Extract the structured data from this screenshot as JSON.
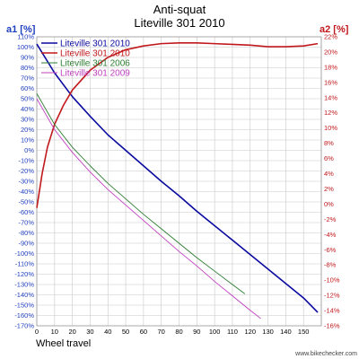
{
  "chart_data": {
    "type": "line",
    "title": "Anti-squat",
    "subtitle": "Liteville 301 2010",
    "y_left_label": "a1 [%]",
    "y_right_label": "a2 [%]",
    "xlabel": "Wheel travel",
    "credit": "www.bikechecker.com",
    "xlim": [
      0,
      160
    ],
    "ylim_left": [
      -170,
      110
    ],
    "ylim_right": [
      -16,
      22
    ],
    "x_ticks": [
      0,
      10,
      20,
      30,
      40,
      50,
      60,
      70,
      80,
      90,
      100,
      110,
      120,
      130,
      140,
      150
    ],
    "y_left_ticks": [
      "110%",
      "100%",
      "90%",
      "80%",
      "70%",
      "60%",
      "50%",
      "40%",
      "30%",
      "20%",
      "10%",
      "0%",
      "-10%",
      "-20%",
      "-30%",
      "-40%",
      "-50%",
      "-60%",
      "-70%",
      "-80%",
      "-90%",
      "-100%",
      "-110%",
      "-120%",
      "-130%",
      "-140%",
      "-150%",
      "-160%",
      "-170%"
    ],
    "y_right_ticks": [
      "22%",
      "20%",
      "18%",
      "16%",
      "14%",
      "12%",
      "10%",
      "8%",
      "6%",
      "4%",
      "2%",
      "0%",
      "-2%",
      "-4%",
      "-6%",
      "-8%",
      "-10%",
      "-12%",
      "-14%",
      "-16%"
    ],
    "grid": true,
    "legend_position": "top-left",
    "series": [
      {
        "name": "Liteville 301 2010",
        "axis": "left",
        "color": "#0a0aa0",
        "points": [
          [
            0,
            103
          ],
          [
            10,
            75
          ],
          [
            20,
            52
          ],
          [
            30,
            33
          ],
          [
            40,
            15
          ],
          [
            50,
            0
          ],
          [
            60,
            -15
          ],
          [
            70,
            -30
          ],
          [
            80,
            -44
          ],
          [
            90,
            -59
          ],
          [
            100,
            -73
          ],
          [
            110,
            -87
          ],
          [
            120,
            -101
          ],
          [
            130,
            -115
          ],
          [
            140,
            -129
          ],
          [
            150,
            -143
          ],
          [
            158,
            -157
          ]
        ]
      },
      {
        "name": "Liteville 301 2010",
        "axis": "right",
        "color": "#c0181c",
        "points": [
          [
            0,
            -0.5
          ],
          [
            3,
            4
          ],
          [
            6,
            7.5
          ],
          [
            10,
            10.5
          ],
          [
            15,
            13
          ],
          [
            20,
            15
          ],
          [
            30,
            17.6
          ],
          [
            40,
            19.3
          ],
          [
            50,
            20.3
          ],
          [
            60,
            20.8
          ],
          [
            70,
            21.1
          ],
          [
            80,
            21.2
          ],
          [
            90,
            21.2
          ],
          [
            100,
            21.1
          ],
          [
            110,
            21
          ],
          [
            120,
            20.9
          ],
          [
            130,
            20.7
          ],
          [
            140,
            20.7
          ],
          [
            150,
            20.8
          ],
          [
            158,
            21.1
          ]
        ]
      },
      {
        "name": "Liteville 301 2006",
        "axis": "left",
        "color": "#2e7d32",
        "points": [
          [
            0,
            55
          ],
          [
            10,
            25
          ],
          [
            20,
            3
          ],
          [
            30,
            -15
          ],
          [
            40,
            -32
          ],
          [
            50,
            -47
          ],
          [
            60,
            -62
          ],
          [
            70,
            -76
          ],
          [
            80,
            -90
          ],
          [
            90,
            -104
          ],
          [
            100,
            -117
          ],
          [
            110,
            -130
          ],
          [
            117,
            -139
          ]
        ]
      },
      {
        "name": "Liteville 301 2009",
        "axis": "left",
        "color": "#c040c0",
        "points": [
          [
            0,
            50
          ],
          [
            10,
            20
          ],
          [
            20,
            -2
          ],
          [
            30,
            -21
          ],
          [
            40,
            -38
          ],
          [
            50,
            -53
          ],
          [
            60,
            -68
          ],
          [
            70,
            -83
          ],
          [
            80,
            -98
          ],
          [
            90,
            -112
          ],
          [
            100,
            -127
          ],
          [
            110,
            -141
          ],
          [
            120,
            -155
          ],
          [
            126,
            -163
          ]
        ]
      }
    ]
  }
}
